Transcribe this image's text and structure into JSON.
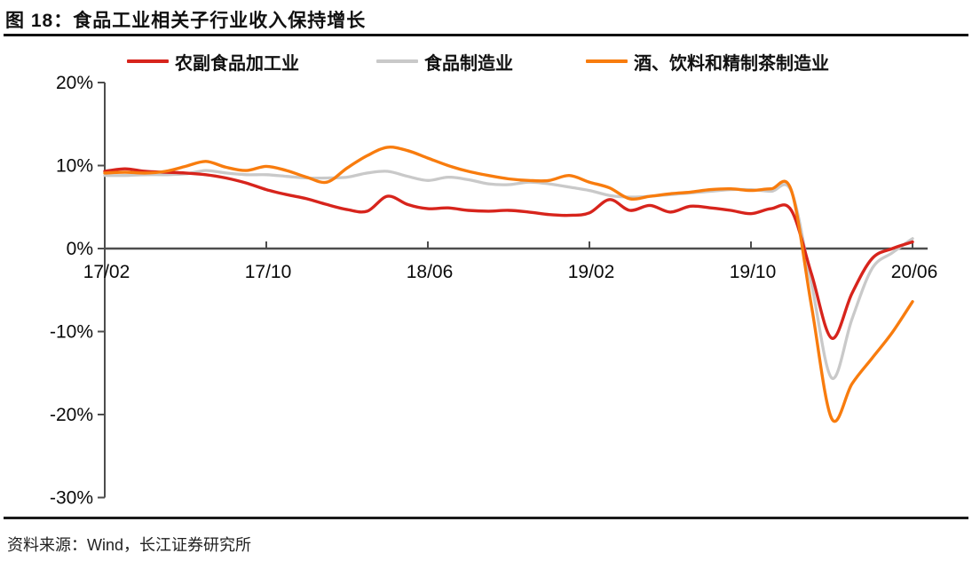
{
  "figure": {
    "title": "图 18：食品工业相关子行业收入保持增长",
    "source": "资料来源：Wind，长江证券研究所"
  },
  "colors": {
    "axis": "#4d4d4d",
    "text": "#0a0a0a",
    "rule": "#111111"
  },
  "chart_data": {
    "type": "line",
    "title": "食品工业相关子行业收入保持增长",
    "xlabel": "",
    "ylabel": "",
    "grid": false,
    "legend_position": "top",
    "ylim": [
      -30,
      20
    ],
    "y_ticks": [
      {
        "value": 20,
        "label": "20%"
      },
      {
        "value": 10,
        "label": "10%"
      },
      {
        "value": 0,
        "label": "0%"
      },
      {
        "value": -10,
        "label": "-10%"
      },
      {
        "value": -20,
        "label": "-20%"
      },
      {
        "value": -30,
        "label": "-30%"
      }
    ],
    "x_ticks": [
      {
        "index": 0,
        "label": "17/02"
      },
      {
        "index": 8,
        "label": "17/10"
      },
      {
        "index": 16,
        "label": "18/06"
      },
      {
        "index": 24,
        "label": "19/02"
      },
      {
        "index": 32,
        "label": "19/10"
      },
      {
        "index": 40,
        "label": "20/06"
      }
    ],
    "x_months": [
      "17/02",
      "17/03",
      "17/04",
      "17/05",
      "17/06",
      "17/07",
      "17/08",
      "17/09",
      "17/10",
      "17/11",
      "17/12",
      "18/01",
      "18/02",
      "18/03",
      "18/04",
      "18/05",
      "18/06",
      "18/07",
      "18/08",
      "18/09",
      "18/10",
      "18/11",
      "18/12",
      "19/01",
      "19/02",
      "19/03",
      "19/04",
      "19/05",
      "19/06",
      "19/07",
      "19/08",
      "19/09",
      "19/10",
      "19/11",
      "19/12",
      "20/01",
      "20/02",
      "20/03",
      "20/04",
      "20/05",
      "20/06"
    ],
    "unit": "percent YoY",
    "series": [
      {
        "id": "agri-food-processing",
        "name": "农副食品加工业",
        "color": "#d7241c",
        "width": 3.4,
        "values": [
          9.3,
          9.6,
          9.3,
          9.2,
          9.1,
          8.9,
          8.5,
          7.9,
          7.1,
          6.5,
          6.0,
          5.3,
          4.7,
          4.5,
          6.3,
          5.3,
          4.8,
          4.9,
          4.6,
          4.5,
          4.6,
          4.4,
          4.1,
          4.0,
          4.3,
          5.9,
          4.6,
          5.2,
          4.4,
          5.1,
          4.9,
          4.6,
          4.2,
          4.8,
          4.6,
          -3.1,
          -10.8,
          -5.4,
          -1.2,
          0.0,
          0.8
        ]
      },
      {
        "id": "food-manufacturing",
        "name": "食品制造业",
        "color": "#c9c9c9",
        "width": 3.3,
        "values": [
          8.8,
          8.8,
          8.9,
          8.9,
          9.0,
          9.4,
          9.1,
          8.9,
          8.9,
          8.7,
          8.5,
          8.5,
          8.6,
          9.1,
          9.3,
          8.7,
          8.2,
          8.6,
          8.3,
          7.8,
          7.7,
          8.0,
          7.8,
          7.4,
          7.0,
          6.4,
          6.2,
          6.3,
          6.5,
          6.7,
          6.9,
          7.1,
          7.1,
          6.9,
          6.9,
          -4.3,
          -15.6,
          -8.5,
          -2.4,
          -0.5,
          1.2
        ]
      },
      {
        "id": "liquor-beverage-tea",
        "name": "酒、饮料和精制茶制造业",
        "color": "#f87c0e",
        "width": 3.4,
        "values": [
          9.1,
          9.2,
          9.1,
          9.3,
          9.9,
          10.5,
          9.8,
          9.4,
          9.9,
          9.4,
          8.6,
          8.0,
          9.7,
          11.2,
          12.2,
          11.8,
          10.9,
          10.0,
          9.3,
          8.8,
          8.4,
          8.2,
          8.2,
          8.8,
          8.0,
          7.3,
          6.0,
          6.3,
          6.6,
          6.8,
          7.1,
          7.2,
          7.0,
          7.2,
          7.0,
          -7.0,
          -20.5,
          -16.3,
          -13.2,
          -10.1,
          -6.4
        ]
      }
    ]
  }
}
